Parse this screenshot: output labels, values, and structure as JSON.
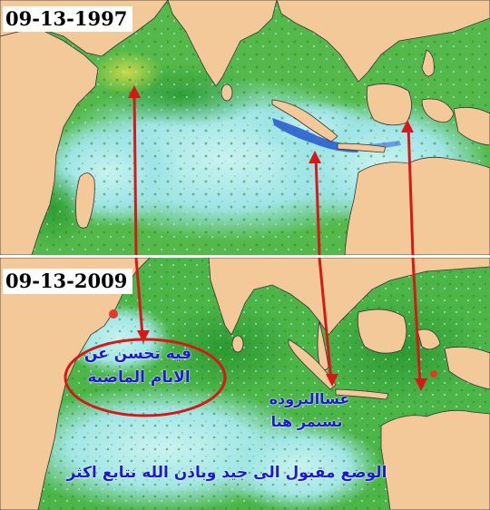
{
  "panels": {
    "top": {
      "date": "09-13-1997"
    },
    "bottom": {
      "date": "09-13-2009"
    }
  },
  "annotations": {
    "improvement_line1": "فيه تحسن عن",
    "improvement_line2": "الايام الماضية",
    "cold_line1": "عساالبروده",
    "cold_line2": "تستمر هنا",
    "summary": "الوضع مقبول الى جيد وباذن الله نتابع اكثر"
  },
  "colors": {
    "land": "#f3c99a",
    "ocean_green": "#3fae3a",
    "ocean_cyan": "#8fe0e8",
    "ocean_blue": "#2a5fd0",
    "arrow_red": "#d81818",
    "text_blue": "#1a1ad0"
  }
}
